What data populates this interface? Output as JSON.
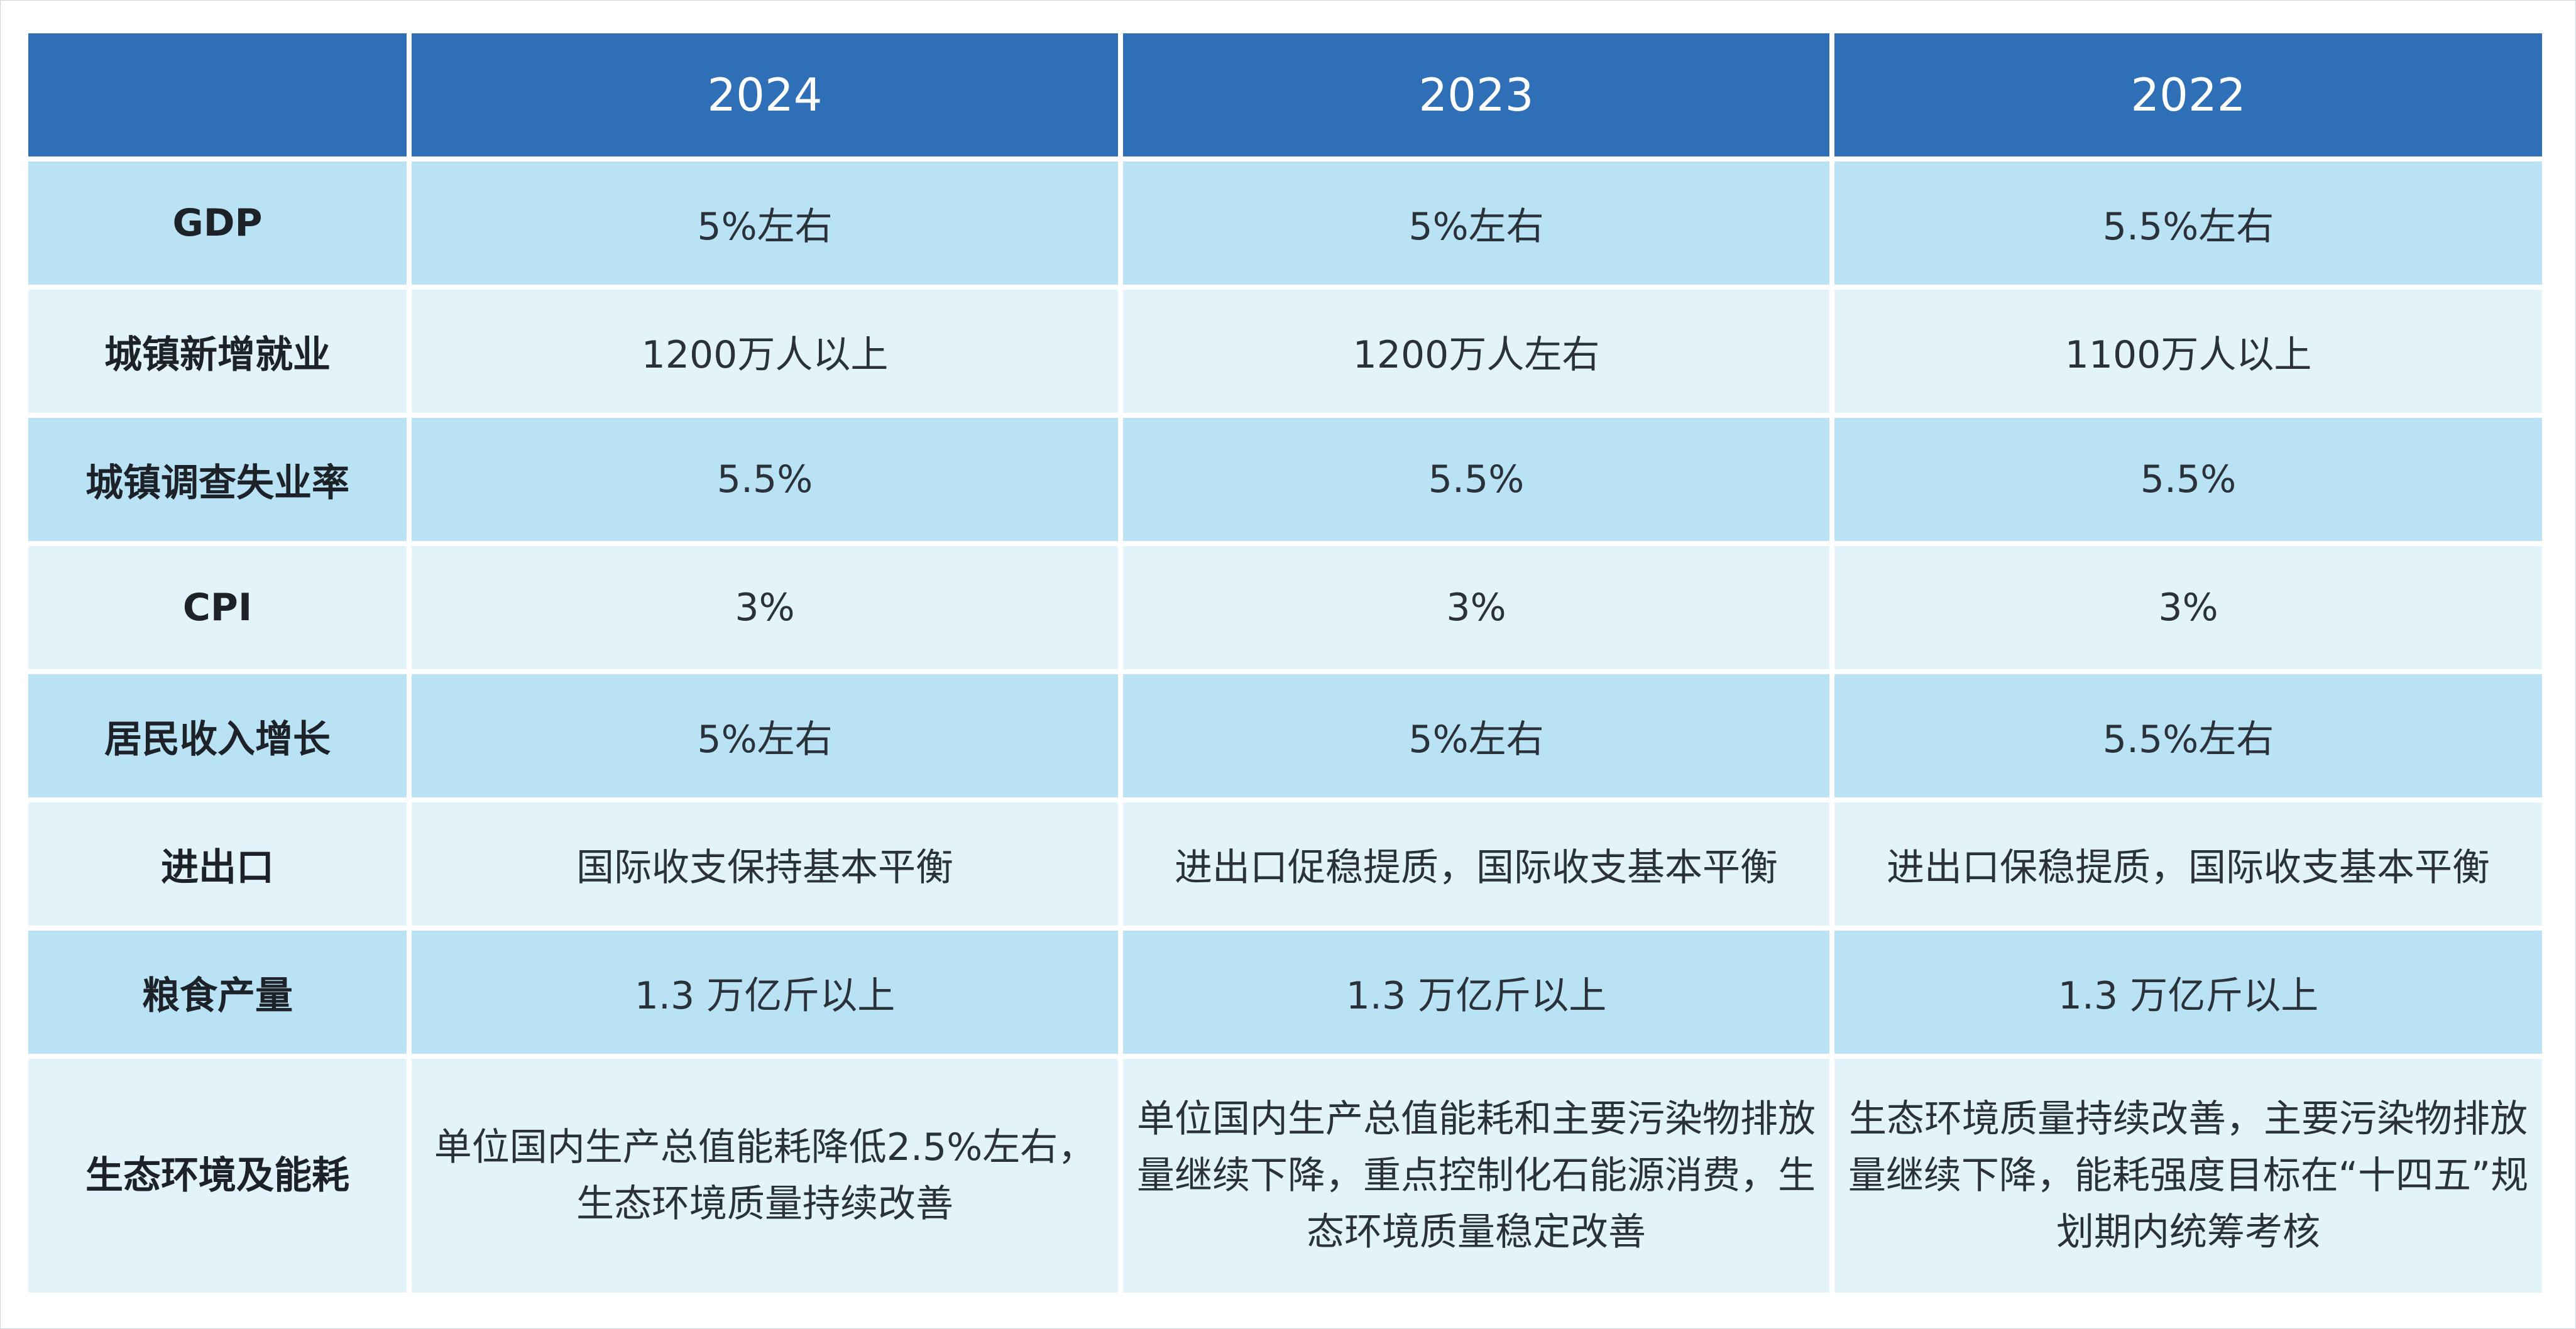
{
  "table": {
    "columns": [
      "",
      "2024",
      "2023",
      "2022"
    ],
    "rows": [
      {
        "label": "GDP",
        "values": [
          "5%左右",
          "5%左右",
          "5.5%左右"
        ]
      },
      {
        "label": "城镇新增就业",
        "values": [
          "1200万人以上",
          "1200万人左右",
          "1100万人以上"
        ]
      },
      {
        "label": "城镇调查失业率",
        "values": [
          "5.5%",
          "5.5%",
          "5.5%"
        ]
      },
      {
        "label": "CPI",
        "values": [
          "3%",
          "3%",
          "3%"
        ]
      },
      {
        "label": "居民收入增长",
        "values": [
          "5%左右",
          "5%左右",
          "5.5%左右"
        ]
      },
      {
        "label": "进出口",
        "values": [
          "国际收支保持基本平衡",
          "进出口促稳提质，国际收支基本平衡",
          "进出口保稳提质，国际收支基本平衡"
        ]
      },
      {
        "label": "粮食产量",
        "values": [
          "1.3 万亿斤以上",
          "1.3 万亿斤以上",
          "1.3 万亿斤以上"
        ]
      },
      {
        "label": "生态环境及能耗",
        "values": [
          "单位国内生产总值能耗降低2.5%左右，生态环境质量持续改善",
          "单位国内生产总值能耗和主要污染物排放量继续下降，重点控制化石能源消费，生态环境质量稳定改善",
          "生态环境质量持续改善，主要污染物排放量继续下降，能耗强度目标在“十四五”规划期内统筹考核"
        ]
      }
    ]
  },
  "colors": {
    "header": "#2e6fb8",
    "row_dark": "#b9e2f5",
    "row_light": "#e3f3fa",
    "text": "#2b3138"
  }
}
